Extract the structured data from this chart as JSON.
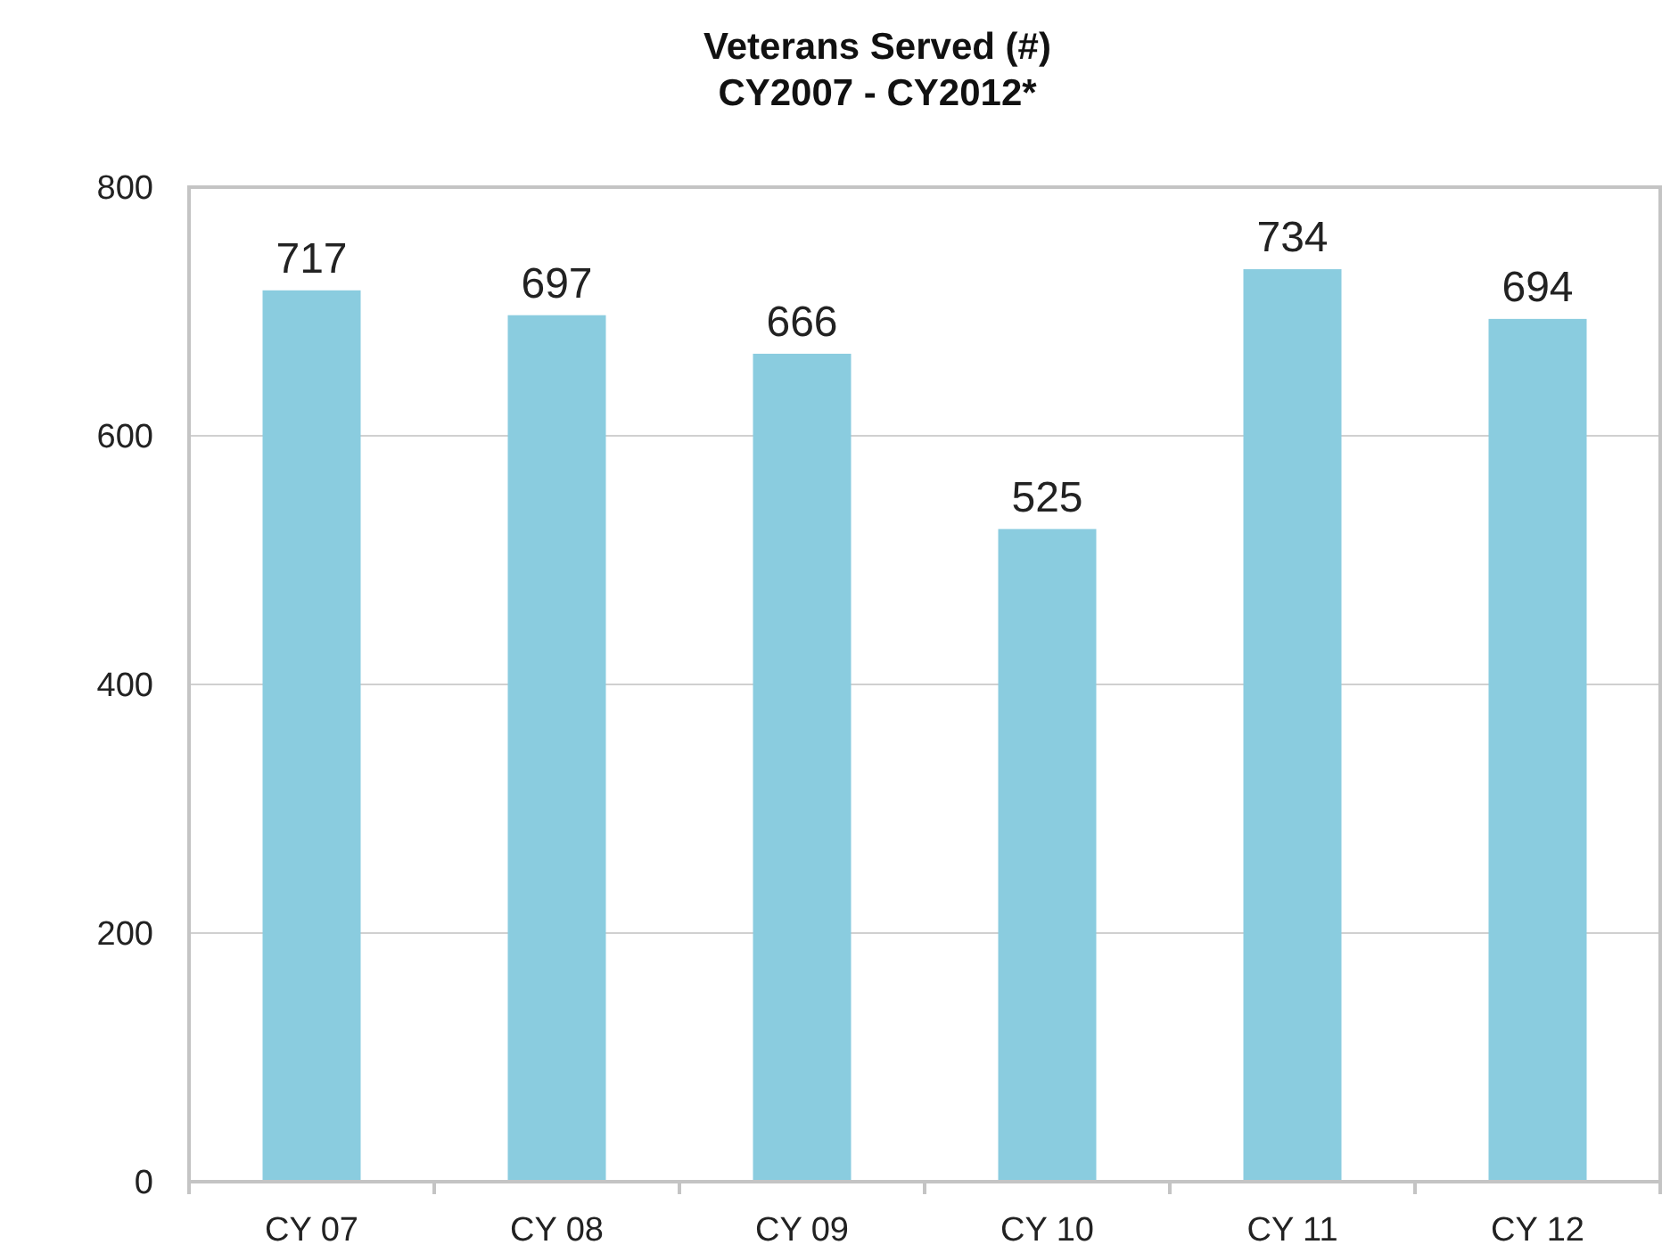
{
  "chart_data": {
    "type": "bar",
    "title": "Veterans Served (#)",
    "subtitle": "CY2007 - CY2012*",
    "categories": [
      "CY 07",
      "CY 08",
      "CY 09",
      "CY 10",
      "CY 11",
      "CY 12"
    ],
    "values": [
      717,
      697,
      666,
      525,
      734,
      694
    ],
    "color": "#8accdf",
    "ylim": [
      0,
      800
    ],
    "yticks": [
      0,
      200,
      400,
      600,
      800
    ],
    "grid": "y",
    "data_labels": true
  }
}
